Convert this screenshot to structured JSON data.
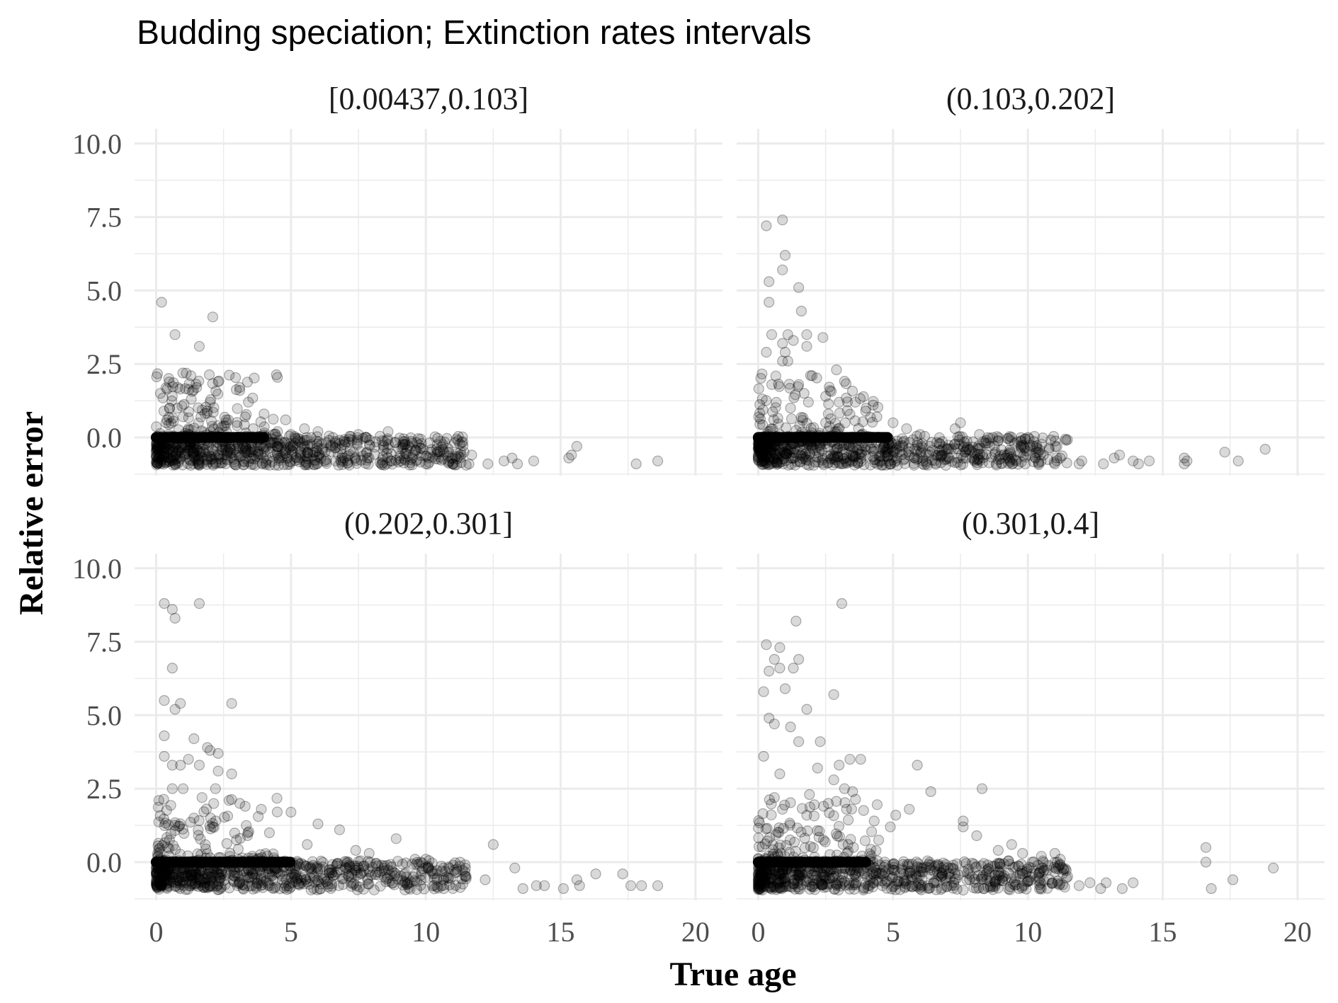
{
  "chart_data": {
    "type": "scatter",
    "title": "Budding speciation; Extinction rates intervals",
    "xlabel": "True age",
    "ylabel": "Relative error",
    "xlim": [
      -0.8,
      21
    ],
    "ylim": [
      -1.3,
      10.5
    ],
    "x_ticks": [
      "0",
      "5",
      "10",
      "15",
      "20"
    ],
    "x_tick_values": [
      0,
      5,
      10,
      15,
      20
    ],
    "y_ticks": [
      "0.0",
      "2.5",
      "5.0",
      "7.5",
      "10.0"
    ],
    "y_tick_values": [
      0,
      2.5,
      5,
      7.5,
      10
    ],
    "grid": true,
    "legend": "none",
    "point_color": "#000000",
    "point_alpha": 0.15,
    "panels": [
      {
        "label": "[0.00437,0.103]",
        "zero_line_to": 4.0,
        "points": [
          [
            0.2,
            4.6
          ],
          [
            0.7,
            3.5
          ],
          [
            1.6,
            3.1
          ],
          [
            2.1,
            4.1
          ],
          [
            1.5,
            1.7
          ],
          [
            0.8,
            1.7
          ],
          [
            2.3,
            1.9
          ],
          [
            3.1,
            1.7
          ],
          [
            3.1,
            1.6
          ],
          [
            0.6,
            1.4
          ],
          [
            1.3,
            1.3
          ],
          [
            2.0,
            1.2
          ],
          [
            0.5,
            1.0
          ],
          [
            1.9,
            0.9
          ],
          [
            2.6,
            0.6
          ],
          [
            2.6,
            0.5
          ],
          [
            4.0,
            0.8
          ],
          [
            3.3,
            0.7
          ],
          [
            4.8,
            0.6
          ],
          [
            1.0,
            0.7
          ],
          [
            0.4,
            0.6
          ],
          [
            1.2,
            0.3
          ],
          [
            2.3,
            0.4
          ],
          [
            3.0,
            0.4
          ],
          [
            3.6,
            0.3
          ],
          [
            4.5,
            0.2
          ],
          [
            5.5,
            0.3
          ],
          [
            5.0,
            0.1
          ],
          [
            6.0,
            0.2
          ],
          [
            7.5,
            0.1
          ],
          [
            8.6,
            0.2
          ],
          [
            9.3,
            -0.4
          ],
          [
            10.4,
            -0.4
          ],
          [
            10.8,
            -0.5
          ],
          [
            11.3,
            -0.6
          ],
          [
            11.7,
            -0.6
          ],
          [
            12.3,
            -0.9
          ],
          [
            12.9,
            -0.8
          ],
          [
            13.2,
            -0.7
          ],
          [
            13.4,
            -0.9
          ],
          [
            14.0,
            -0.8
          ],
          [
            15.3,
            -0.7
          ],
          [
            15.4,
            -0.6
          ],
          [
            15.6,
            -0.3
          ],
          [
            17.8,
            -0.9
          ],
          [
            18.6,
            -0.8
          ],
          [
            11.0,
            -0.9
          ],
          [
            11.6,
            -0.9
          ],
          [
            10.0,
            -0.9
          ],
          [
            9.5,
            -0.7
          ]
        ]
      },
      {
        "label": "(0.103,0.202]",
        "zero_line_to": 4.8,
        "points": [
          [
            0.3,
            7.2
          ],
          [
            0.9,
            7.4
          ],
          [
            1.0,
            6.2
          ],
          [
            0.9,
            5.7
          ],
          [
            0.4,
            5.3
          ],
          [
            1.5,
            5.1
          ],
          [
            0.4,
            4.6
          ],
          [
            1.6,
            4.3
          ],
          [
            0.5,
            3.5
          ],
          [
            1.1,
            3.5
          ],
          [
            1.8,
            3.5
          ],
          [
            2.4,
            3.4
          ],
          [
            1.3,
            3.3
          ],
          [
            0.9,
            3.2
          ],
          [
            1.0,
            2.9
          ],
          [
            0.3,
            2.9
          ],
          [
            0.9,
            2.6
          ],
          [
            1.1,
            2.6
          ],
          [
            1.8,
            3.1
          ],
          [
            2.0,
            2.1
          ],
          [
            2.9,
            2.3
          ],
          [
            1.5,
            1.8
          ],
          [
            0.5,
            1.8
          ],
          [
            1.7,
            1.5
          ],
          [
            2.5,
            1.4
          ],
          [
            3.0,
            1.2
          ],
          [
            3.6,
            1.2
          ],
          [
            4.0,
            1.0
          ],
          [
            1.2,
            1.0
          ],
          [
            2.6,
            0.8
          ],
          [
            4.4,
            0.7
          ],
          [
            5.0,
            0.5
          ],
          [
            5.5,
            0.3
          ],
          [
            6.0,
            0.1
          ],
          [
            7.5,
            0.5
          ],
          [
            7.3,
            0.3
          ],
          [
            8.2,
            0.1
          ],
          [
            8.7,
            0.0
          ],
          [
            10.0,
            0.0
          ],
          [
            9.5,
            -0.2
          ],
          [
            10.4,
            -0.5
          ],
          [
            11.2,
            -0.7
          ],
          [
            12.0,
            -0.8
          ],
          [
            12.8,
            -0.9
          ],
          [
            13.2,
            -0.7
          ],
          [
            13.4,
            -0.6
          ],
          [
            14.1,
            -0.9
          ],
          [
            14.5,
            -0.8
          ],
          [
            15.8,
            -0.7
          ],
          [
            15.9,
            -0.8
          ],
          [
            17.3,
            -0.5
          ],
          [
            17.8,
            -0.8
          ],
          [
            18.8,
            -0.4
          ],
          [
            15.8,
            -0.9
          ],
          [
            13.9,
            -0.8
          ],
          [
            11.9,
            -0.9
          ],
          [
            11.0,
            -0.9
          ],
          [
            9.9,
            -0.9
          ]
        ]
      },
      {
        "label": "(0.202,0.301]",
        "zero_line_to": 5.0,
        "points": [
          [
            0.3,
            8.8
          ],
          [
            0.6,
            8.6
          ],
          [
            0.7,
            8.3
          ],
          [
            1.6,
            8.8
          ],
          [
            0.6,
            6.6
          ],
          [
            0.3,
            5.5
          ],
          [
            0.9,
            5.4
          ],
          [
            0.7,
            5.2
          ],
          [
            2.8,
            5.4
          ],
          [
            0.3,
            4.3
          ],
          [
            1.4,
            4.2
          ],
          [
            1.9,
            3.9
          ],
          [
            2.0,
            3.8
          ],
          [
            2.3,
            3.7
          ],
          [
            0.3,
            3.6
          ],
          [
            1.2,
            3.5
          ],
          [
            1.6,
            3.3
          ],
          [
            0.6,
            3.3
          ],
          [
            0.9,
            3.3
          ],
          [
            2.3,
            3.1
          ],
          [
            2.8,
            3.0
          ],
          [
            1.0,
            2.5
          ],
          [
            0.6,
            2.5
          ],
          [
            2.2,
            2.5
          ],
          [
            1.7,
            2.2
          ],
          [
            0.1,
            2.1
          ],
          [
            2.7,
            2.1
          ],
          [
            3.1,
            2.0
          ],
          [
            3.3,
            1.9
          ],
          [
            3.9,
            1.8
          ],
          [
            5.0,
            1.7
          ],
          [
            1.4,
            1.5
          ],
          [
            2.1,
            1.2
          ],
          [
            6.0,
            1.3
          ],
          [
            3.4,
            1.0
          ],
          [
            4.2,
            1.0
          ],
          [
            6.8,
            1.1
          ],
          [
            5.6,
            0.6
          ],
          [
            7.4,
            0.4
          ],
          [
            7.9,
            0.3
          ],
          [
            8.9,
            0.8
          ],
          [
            9.6,
            0.1
          ],
          [
            10.0,
            0.1
          ],
          [
            12.5,
            0.6
          ],
          [
            10.6,
            -0.3
          ],
          [
            11.5,
            -0.5
          ],
          [
            12.2,
            -0.6
          ],
          [
            13.3,
            -0.2
          ],
          [
            14.1,
            -0.8
          ],
          [
            14.4,
            -0.8
          ],
          [
            15.1,
            -0.9
          ],
          [
            15.6,
            -0.6
          ],
          [
            15.7,
            -0.8
          ],
          [
            16.3,
            -0.4
          ],
          [
            17.3,
            -0.4
          ],
          [
            17.6,
            -0.8
          ],
          [
            18.0,
            -0.8
          ],
          [
            18.6,
            -0.8
          ],
          [
            13.6,
            -0.9
          ],
          [
            11.0,
            -0.9
          ]
        ]
      },
      {
        "label": "(0.301,0.4]",
        "zero_line_to": 4.0,
        "points": [
          [
            3.1,
            8.8
          ],
          [
            1.4,
            8.2
          ],
          [
            0.3,
            7.4
          ],
          [
            0.8,
            7.3
          ],
          [
            0.6,
            6.9
          ],
          [
            0.8,
            6.6
          ],
          [
            1.5,
            6.9
          ],
          [
            1.3,
            6.6
          ],
          [
            0.4,
            6.5
          ],
          [
            0.2,
            5.8
          ],
          [
            1.0,
            5.9
          ],
          [
            2.8,
            5.7
          ],
          [
            1.8,
            5.2
          ],
          [
            0.4,
            4.9
          ],
          [
            0.6,
            4.7
          ],
          [
            1.2,
            4.6
          ],
          [
            1.5,
            4.1
          ],
          [
            2.3,
            4.1
          ],
          [
            0.2,
            3.6
          ],
          [
            3.4,
            3.5
          ],
          [
            3.8,
            3.5
          ],
          [
            5.9,
            3.3
          ],
          [
            3.0,
            3.3
          ],
          [
            2.2,
            3.2
          ],
          [
            0.8,
            3.0
          ],
          [
            2.8,
            2.8
          ],
          [
            3.2,
            2.5
          ],
          [
            3.5,
            2.4
          ],
          [
            6.4,
            2.4
          ],
          [
            8.3,
            2.5
          ],
          [
            1.9,
            2.3
          ],
          [
            0.6,
            2.2
          ],
          [
            2.6,
            2.0
          ],
          [
            0.9,
            1.8
          ],
          [
            1.8,
            1.6
          ],
          [
            4.3,
            1.4
          ],
          [
            5.1,
            1.6
          ],
          [
            5.6,
            1.8
          ],
          [
            4.9,
            1.2
          ],
          [
            7.6,
            1.4
          ],
          [
            7.6,
            1.2
          ],
          [
            8.1,
            0.9
          ],
          [
            8.9,
            0.4
          ],
          [
            9.4,
            0.6
          ],
          [
            9.8,
            0.3
          ],
          [
            10.5,
            0.2
          ],
          [
            11.0,
            0.3
          ],
          [
            11.2,
            0.1
          ],
          [
            10.8,
            -0.6
          ],
          [
            11.9,
            -0.8
          ],
          [
            12.3,
            -0.7
          ],
          [
            12.7,
            -0.9
          ],
          [
            13.5,
            -0.9
          ],
          [
            13.9,
            -0.7
          ],
          [
            16.6,
            0.5
          ],
          [
            16.6,
            0.0
          ],
          [
            16.8,
            -0.9
          ],
          [
            17.6,
            -0.6
          ],
          [
            19.1,
            -0.2
          ],
          [
            12.9,
            -0.7
          ]
        ]
      }
    ]
  }
}
